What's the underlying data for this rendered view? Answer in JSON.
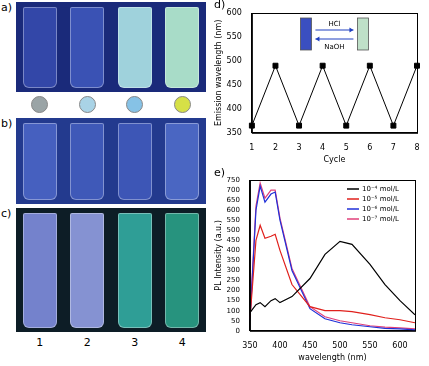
{
  "photos": {
    "panels": [
      {
        "label": "a)",
        "background": "#1a2a7a",
        "cuvette_colors": [
          "#3347a8",
          "#3a52b4",
          "#9fd2dc",
          "#a8dcc8"
        ],
        "circle_colors": [
          "#9aa4a6",
          "#a9d3e6",
          "#86c2e6",
          "#d6e046"
        ]
      },
      {
        "label": "b)",
        "background": "#233a8e",
        "cuvette_colors": [
          "#4660bf",
          "#3f59b8",
          "#3d56b6",
          "#4a66c2"
        ]
      },
      {
        "label": "c)",
        "background": "#0d1d26",
        "cuvette_colors": [
          "#7482cc",
          "#8592d2",
          "#2f9e96",
          "#27937e"
        ]
      }
    ],
    "sample_labels": [
      "1",
      "2",
      "3",
      "4"
    ]
  },
  "chart_data": [
    {
      "type": "line",
      "title": "d)",
      "x": [
        1,
        2,
        3,
        4,
        5,
        6,
        7,
        8
      ],
      "values": [
        365,
        490,
        365,
        490,
        365,
        490,
        365,
        490
      ],
      "color": "#000000",
      "marker": "square",
      "xlabel": "Cycle",
      "ylabel": "Emission wavelength (nm)",
      "xlim": [
        1,
        8
      ],
      "xticks": [
        1,
        2,
        3,
        4,
        5,
        6,
        7,
        8
      ],
      "ylim": [
        350,
        600
      ],
      "yticks": [
        350,
        400,
        450,
        500,
        550,
        600
      ],
      "grid": false,
      "inset_labels": [
        "HCl",
        "NaOH"
      ],
      "inset_colors": [
        "#3a4fc0",
        "#bfe0c8"
      ]
    },
    {
      "type": "line",
      "title": "e)",
      "x": [
        350,
        360,
        367,
        375,
        385,
        392,
        400,
        420,
        450,
        475,
        500,
        520,
        550,
        575,
        600,
        625
      ],
      "series": [
        {
          "name": "10⁻⁴ mol/L",
          "color": "#000000",
          "values": [
            90,
            130,
            140,
            120,
            150,
            160,
            140,
            170,
            260,
            380,
            445,
            430,
            330,
            230,
            150,
            80
          ]
        },
        {
          "name": "10⁻⁵ mol/L",
          "color": "#e0201c",
          "values": [
            60,
            450,
            525,
            460,
            470,
            480,
            400,
            230,
            120,
            100,
            100,
            95,
            80,
            65,
            55,
            40
          ]
        },
        {
          "name": "10⁻⁶ mol/L",
          "color": "#2030d8",
          "values": [
            50,
            600,
            720,
            640,
            680,
            690,
            550,
            300,
            110,
            60,
            40,
            30,
            20,
            12,
            10,
            5
          ]
        },
        {
          "name": "10⁻⁷ mol/L",
          "color": "#e0407a",
          "values": [
            60,
            620,
            735,
            660,
            700,
            700,
            560,
            310,
            120,
            70,
            50,
            40,
            25,
            18,
            15,
            10
          ]
        }
      ],
      "xlabel": "wavelength (nm)",
      "ylabel": "PL Intensity (a.u.)",
      "xlim": [
        350,
        625
      ],
      "xticks": [
        350,
        400,
        450,
        500,
        550,
        600
      ],
      "ylim": [
        0,
        750
      ],
      "yticks": [
        0,
        50,
        100,
        150,
        200,
        250,
        300,
        350,
        400,
        450,
        500,
        550,
        600,
        650,
        700,
        750
      ],
      "grid": false,
      "legend": "upper right"
    }
  ]
}
